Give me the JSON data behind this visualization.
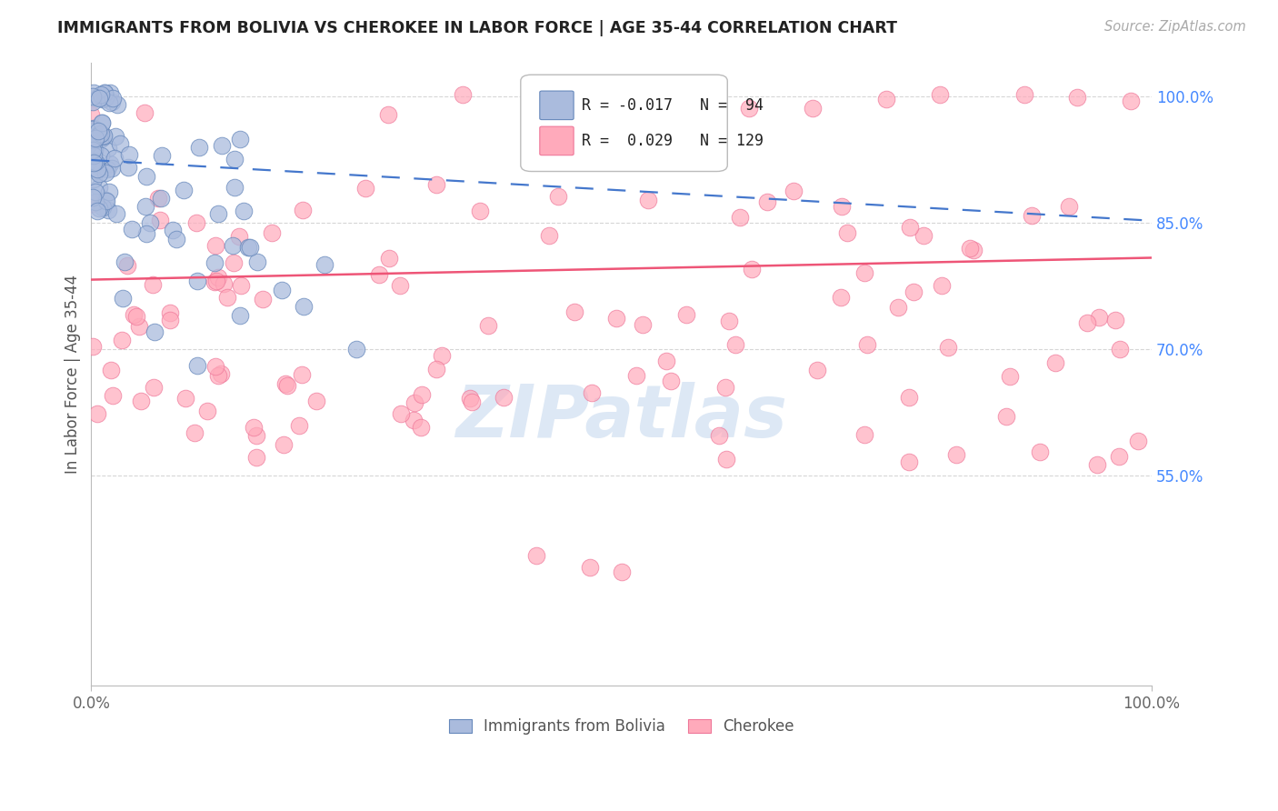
{
  "title": "IMMIGRANTS FROM BOLIVIA VS CHEROKEE IN LABOR FORCE | AGE 35-44 CORRELATION CHART",
  "source": "Source: ZipAtlas.com",
  "ylabel": "In Labor Force | Age 35-44",
  "y_tick_values": [
    0.55,
    0.7,
    0.85,
    1.0
  ],
  "legend_blue_r": "-0.017",
  "legend_blue_n": "94",
  "legend_pink_r": "0.029",
  "legend_pink_n": "129",
  "legend_blue_label": "Immigrants from Bolivia",
  "legend_pink_label": "Cherokee",
  "blue_fill": "#aabbdd",
  "blue_edge": "#6688bb",
  "pink_fill": "#ffaabb",
  "pink_edge": "#ee7799",
  "blue_line_color": "#4477cc",
  "pink_line_color": "#ee5577",
  "grid_color": "#cccccc",
  "title_color": "#222222",
  "source_color": "#aaaaaa",
  "right_axis_color": "#4488ff",
  "watermark_color": "#dde8f5",
  "xlim": [
    0.0,
    1.0
  ],
  "ylim": [
    0.3,
    1.04
  ],
  "blue_trend_y0": 0.924,
  "blue_trend_y1": 0.852,
  "pink_trend_y0": 0.782,
  "pink_trend_y1": 0.808
}
